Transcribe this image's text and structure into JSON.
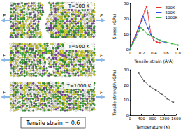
{
  "chart_data": [
    {
      "type": "line",
      "x_label": "Tensile strain (Å/Å)",
      "y_label": "Stress (GPa)",
      "xlim": [
        0,
        0.8
      ],
      "xticks": [
        0,
        0.2,
        0.4,
        0.6,
        0.8
      ],
      "ylim": [
        0,
        30
      ],
      "yticks": [
        0,
        10,
        20,
        30
      ],
      "grid": false,
      "legend": "upper right",
      "marker": "circle",
      "series": [
        {
          "name": "300K",
          "color": "#e8322d",
          "x": [
            0,
            0.05,
            0.1,
            0.15,
            0.2,
            0.25,
            0.28,
            0.3,
            0.33,
            0.36,
            0.4,
            0.45,
            0.5
          ],
          "values": [
            0,
            5,
            10,
            15,
            20,
            25,
            28,
            24,
            15,
            9,
            6,
            5,
            4.5
          ]
        },
        {
          "name": "500K",
          "color": "#2d4fe0",
          "x": [
            0,
            0.05,
            0.1,
            0.15,
            0.2,
            0.22,
            0.25,
            0.3,
            0.35,
            0.4,
            0.5,
            0.6
          ],
          "values": [
            0,
            4.5,
            9.5,
            14,
            19,
            21.5,
            19,
            14,
            10,
            8,
            6,
            4.5
          ]
        },
        {
          "name": "1000K",
          "color": "#3cb63c",
          "x": [
            0,
            0.05,
            0.1,
            0.15,
            0.18,
            0.22,
            0.3,
            0.4,
            0.5,
            0.6,
            0.7,
            0.8
          ],
          "values": [
            0,
            4,
            8,
            12,
            14.5,
            13,
            10,
            8,
            6,
            5,
            4,
            3
          ]
        }
      ]
    },
    {
      "type": "line",
      "x_label": "Temperature (K)",
      "y_label": "Tensile strength (GPa)",
      "xlim": [
        0,
        1600
      ],
      "xticks": [
        0,
        400,
        800,
        1200,
        1600
      ],
      "ylim": [
        0,
        30
      ],
      "yticks": [
        0,
        10,
        20,
        30
      ],
      "grid": false,
      "marker": "rect",
      "series": [
        {
          "name": "Tensile strength",
          "color": "#555555",
          "x": [
            300,
            500,
            700,
            900,
            1100,
            1300,
            1500
          ],
          "values": [
            28,
            22.5,
            19,
            16.5,
            14,
            11,
            8.5
          ]
        }
      ]
    }
  ],
  "snapshots": {
    "panels": [
      {
        "label": "T=300 K"
      },
      {
        "label": "T=500 K"
      },
      {
        "label": "T=1000 K"
      }
    ],
    "force_label": "F",
    "caption": "Tensile strain = 0.6"
  }
}
